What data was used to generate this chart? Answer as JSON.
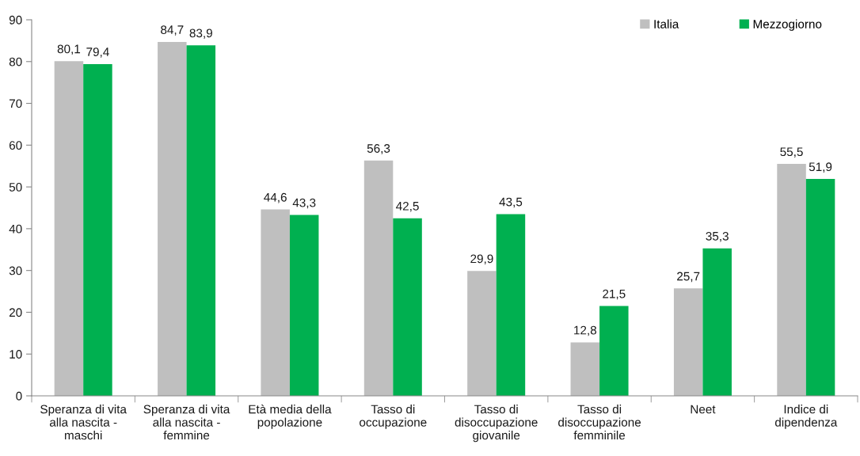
{
  "chart_data": {
    "type": "bar",
    "categories": [
      "Speranza di vita\nalla nascita -\nmaschi",
      "Speranza di vita\nalla nascita -\nfemmine",
      "Età media della\npopolazione",
      "Tasso di\noccupazione",
      "Tasso di\ndisoccupazione\ngiovanile",
      "Tasso di\ndisoccupazione\nfemminile",
      "Neet",
      "Indice di\ndipendenza"
    ],
    "series": [
      {
        "name": "Italia",
        "color": "#bfbfbf",
        "values": [
          80.1,
          84.7,
          44.6,
          56.3,
          29.9,
          12.8,
          25.7,
          55.5
        ],
        "value_labels": [
          "80,1",
          "84,7",
          "44,6",
          "56,3",
          "29,9",
          "12,8",
          "25,7",
          "55,5"
        ]
      },
      {
        "name": "Mezzogiorno",
        "color": "#00b050",
        "values": [
          79.4,
          83.9,
          43.3,
          42.5,
          43.5,
          21.5,
          35.3,
          51.9
        ],
        "value_labels": [
          "79,4",
          "83,9",
          "43,3",
          "42,5",
          "43,5",
          "21,5",
          "35,3",
          "51,9"
        ]
      }
    ],
    "ylim": [
      0,
      90
    ],
    "yticks": [
      0,
      10,
      20,
      30,
      40,
      50,
      60,
      70,
      80,
      90
    ],
    "grid": false,
    "legend": "top right"
  }
}
